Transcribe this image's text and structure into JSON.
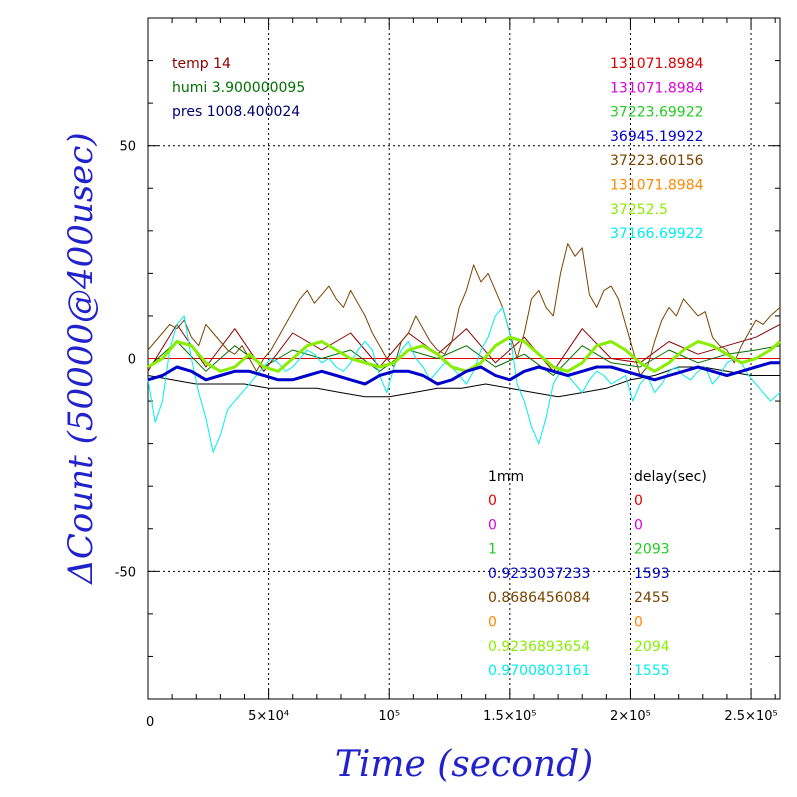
{
  "chart_data": {
    "type": "line",
    "xlabel": "Time (second)",
    "ylabel": "ΔCount (50000@400usec)",
    "xlim": [
      0,
      262000
    ],
    "ylim": [
      -80,
      80
    ],
    "grid": true,
    "x_ticks": [
      {
        "value": 0,
        "label": "0"
      },
      {
        "value": 50000,
        "label": "5×10⁴"
      },
      {
        "value": 100000,
        "label": "10⁵"
      },
      {
        "value": 150000,
        "label": "1.5×10⁵"
      },
      {
        "value": 200000,
        "label": "2×10⁵"
      },
      {
        "value": 250000,
        "label": "2.5×10⁵"
      }
    ],
    "y_ticks": [
      {
        "value": 50,
        "label": "50"
      },
      {
        "value": 0,
        "label": "0"
      },
      {
        "value": -50,
        "label": "-50"
      }
    ],
    "env_info": [
      {
        "text": "temp 14",
        "color": "#8b0000"
      },
      {
        "text": "humi 3.900000095",
        "color": "#007000"
      },
      {
        "text": "pres 1008.400024",
        "color": "#00006b"
      }
    ],
    "channel_values": [
      {
        "text": "131071.8984",
        "color": "#dd0000"
      },
      {
        "text": "131071.8984",
        "color": "#dd00dd"
      },
      {
        "text": "37223.69922",
        "color": "#22cc22"
      },
      {
        "text": "36945.19922",
        "color": "#0000cc"
      },
      {
        "text": "37223.60156",
        "color": "#7a4400"
      },
      {
        "text": "131071.8984",
        "color": "#ff8800"
      },
      {
        "text": "37252.5",
        "color": "#88ee00"
      },
      {
        "text": "37166.69922",
        "color": "#00eeee"
      }
    ],
    "table_headers": {
      "col1": "1mm",
      "col2": "delay(sec)"
    },
    "table_rows": [
      {
        "v1": "0",
        "v2": "0",
        "color": "#dd0000"
      },
      {
        "v1": "0",
        "v2": "0",
        "color": "#dd00dd"
      },
      {
        "v1": "1",
        "v2": "2093",
        "color": "#22cc22"
      },
      {
        "v1": "0.9233037233",
        "v2": "1593",
        "color": "#0000cc"
      },
      {
        "v1": "0.8686456084",
        "v2": "2455",
        "color": "#7a4400"
      },
      {
        "v1": "0",
        "v2": "0",
        "color": "#ff8800"
      },
      {
        "v1": "0.9236893654",
        "v2": "2094",
        "color": "#88ee00"
      },
      {
        "v1": "0.9700803161",
        "v2": "1555",
        "color": "#00eeee"
      }
    ],
    "series": [
      {
        "color": "#dd0000",
        "width": 1,
        "x": [
          0,
          262000
        ],
        "y": [
          0,
          0
        ]
      },
      {
        "color": "#000000",
        "width": 1,
        "x": [
          0,
          10000,
          20000,
          30000,
          40000,
          50000,
          60000,
          70000,
          80000,
          90000,
          100000,
          110000,
          120000,
          130000,
          140000,
          150000,
          160000,
          170000,
          180000,
          190000,
          200000,
          210000,
          220000,
          230000,
          240000,
          250000,
          262000
        ],
        "y": [
          -4,
          -5,
          -6,
          -6,
          -6,
          -7,
          -7,
          -7,
          -8,
          -9,
          -9,
          -8,
          -7,
          -7,
          -6,
          -7,
          -8,
          -9,
          -8,
          -7,
          -5,
          -4,
          -2,
          -2,
          -3,
          -4,
          -4
        ]
      },
      {
        "color": "#007000",
        "width": 1,
        "x": [
          0,
          12000,
          24000,
          36000,
          48000,
          60000,
          72000,
          84000,
          96000,
          108000,
          120000,
          132000,
          144000,
          156000,
          168000,
          180000,
          192000,
          204000,
          216000,
          228000,
          240000,
          252000,
          262000
        ],
        "y": [
          -2,
          4,
          -3,
          3,
          -2,
          2,
          0,
          2,
          -3,
          2,
          0,
          3,
          -2,
          1,
          -4,
          3,
          -1,
          -2,
          2,
          -1,
          1,
          2,
          3
        ]
      },
      {
        "color": "#8b0000",
        "width": 1,
        "x": [
          0,
          12000,
          24000,
          36000,
          48000,
          60000,
          72000,
          84000,
          96000,
          108000,
          120000,
          132000,
          144000,
          156000,
          168000,
          180000,
          192000,
          204000,
          216000,
          228000,
          240000,
          252000,
          262000
        ],
        "y": [
          -3,
          8,
          -2,
          7,
          -3,
          6,
          2,
          6,
          -2,
          6,
          1,
          7,
          -1,
          5,
          -3,
          7,
          0,
          -1,
          4,
          1,
          3,
          5,
          8
        ]
      },
      {
        "color": "#7a4400",
        "width": 1,
        "x": [
          0,
          3000,
          6000,
          9000,
          12000,
          15000,
          18000,
          21000,
          24000,
          27000,
          30000,
          33000,
          36000,
          39000,
          42000,
          45000,
          48000,
          51000,
          54000,
          57000,
          60000,
          63000,
          66000,
          69000,
          72000,
          75000,
          78000,
          81000,
          84000,
          87000,
          90000,
          93000,
          96000,
          99000,
          102000,
          105000,
          108000,
          111000,
          114000,
          117000,
          120000,
          123000,
          126000,
          129000,
          132000,
          135000,
          138000,
          141000,
          144000,
          147000,
          150000,
          153000,
          156000,
          159000,
          162000,
          165000,
          168000,
          171000,
          174000,
          177000,
          180000,
          183000,
          186000,
          189000,
          192000,
          195000,
          198000,
          201000,
          204000,
          207000,
          210000,
          213000,
          216000,
          219000,
          222000,
          225000,
          228000,
          231000,
          234000,
          237000,
          240000,
          243000,
          246000,
          249000,
          252000,
          255000,
          258000,
          262000
        ],
        "y": [
          2,
          4,
          6,
          8,
          7,
          9,
          5,
          3,
          8,
          6,
          4,
          2,
          1,
          3,
          0,
          -3,
          0,
          2,
          5,
          8,
          11,
          14,
          16,
          13,
          15,
          17,
          14,
          12,
          16,
          13,
          10,
          6,
          3,
          0,
          -2,
          4,
          6,
          10,
          7,
          4,
          2,
          1,
          4,
          12,
          16,
          22,
          18,
          20,
          16,
          12,
          6,
          0,
          6,
          14,
          16,
          12,
          10,
          20,
          27,
          24,
          26,
          15,
          12,
          16,
          17,
          14,
          8,
          2,
          -4,
          -2,
          4,
          9,
          12,
          10,
          14,
          12,
          10,
          11,
          5,
          3,
          2,
          -1,
          3,
          6,
          9,
          8,
          10,
          12
        ]
      },
      {
        "color": "#00eeee",
        "width": 1,
        "x": [
          0,
          3000,
          6000,
          9000,
          12000,
          15000,
          18000,
          21000,
          24000,
          27000,
          30000,
          33000,
          36000,
          39000,
          42000,
          45000,
          48000,
          51000,
          54000,
          57000,
          60000,
          63000,
          66000,
          69000,
          72000,
          75000,
          78000,
          81000,
          84000,
          87000,
          90000,
          93000,
          96000,
          99000,
          102000,
          105000,
          108000,
          111000,
          114000,
          117000,
          120000,
          123000,
          126000,
          129000,
          132000,
          135000,
          138000,
          141000,
          144000,
          147000,
          150000,
          153000,
          156000,
          159000,
          162000,
          165000,
          168000,
          171000,
          174000,
          177000,
          180000,
          183000,
          186000,
          189000,
          192000,
          195000,
          198000,
          201000,
          204000,
          207000,
          210000,
          213000,
          216000,
          219000,
          222000,
          225000,
          228000,
          231000,
          234000,
          237000,
          240000,
          243000,
          246000,
          249000,
          252000,
          255000,
          258000,
          262000
        ],
        "y": [
          -5,
          -15,
          -10,
          2,
          8,
          10,
          0,
          -8,
          -14,
          -22,
          -18,
          -12,
          -10,
          -8,
          -6,
          -4,
          -2,
          0,
          -1,
          -3,
          -2,
          0,
          2,
          1,
          -1,
          0,
          -2,
          -3,
          -1,
          2,
          4,
          2,
          -4,
          -8,
          -2,
          2,
          4,
          0,
          -2,
          -5,
          -3,
          -1,
          -2,
          -4,
          -6,
          -3,
          2,
          5,
          10,
          12,
          6,
          -6,
          -10,
          -16,
          -20,
          -14,
          -6,
          -3,
          -4,
          -6,
          -8,
          -5,
          -3,
          -4,
          -6,
          -5,
          -4,
          -10,
          -6,
          -4,
          -8,
          -6,
          -3,
          -2,
          -4,
          -5,
          -3,
          -2,
          -6,
          -4,
          -1,
          0,
          -1,
          -4,
          -6,
          -8,
          -10,
          -8
        ]
      },
      {
        "color": "#88ee00",
        "width": 3,
        "x": [
          0,
          6000,
          12000,
          18000,
          24000,
          30000,
          36000,
          42000,
          48000,
          54000,
          60000,
          66000,
          72000,
          78000,
          84000,
          90000,
          96000,
          102000,
          108000,
          114000,
          120000,
          126000,
          132000,
          138000,
          144000,
          150000,
          156000,
          162000,
          168000,
          174000,
          180000,
          186000,
          192000,
          198000,
          204000,
          210000,
          216000,
          222000,
          228000,
          234000,
          240000,
          246000,
          252000,
          258000,
          262000
        ],
        "y": [
          -2,
          0,
          4,
          3,
          -1,
          -3,
          -2,
          1,
          -2,
          -3,
          0,
          3,
          4,
          2,
          0,
          -1,
          -2,
          -1,
          2,
          3,
          1,
          -2,
          -3,
          -1,
          3,
          5,
          4,
          1,
          -2,
          -3,
          -1,
          3,
          4,
          2,
          -1,
          -3,
          -1,
          2,
          4,
          3,
          1,
          -1,
          0,
          2,
          4
        ]
      },
      {
        "color": "#0000cc",
        "width": 3,
        "x": [
          0,
          6000,
          12000,
          18000,
          24000,
          30000,
          36000,
          42000,
          48000,
          54000,
          60000,
          66000,
          72000,
          78000,
          84000,
          90000,
          96000,
          102000,
          108000,
          114000,
          120000,
          126000,
          132000,
          138000,
          144000,
          150000,
          156000,
          162000,
          168000,
          174000,
          180000,
          186000,
          192000,
          198000,
          204000,
          210000,
          216000,
          222000,
          228000,
          234000,
          240000,
          246000,
          252000,
          258000,
          262000
        ],
        "y": [
          -5,
          -4,
          -2,
          -3,
          -5,
          -4,
          -3,
          -3,
          -4,
          -5,
          -5,
          -4,
          -3,
          -4,
          -5,
          -6,
          -4,
          -3,
          -3,
          -4,
          -6,
          -5,
          -3,
          -2,
          -4,
          -5,
          -3,
          -2,
          -3,
          -4,
          -3,
          -2,
          -2,
          -3,
          -4,
          -5,
          -4,
          -3,
          -2,
          -3,
          -4,
          -3,
          -2,
          -1,
          -1
        ]
      }
    ]
  }
}
